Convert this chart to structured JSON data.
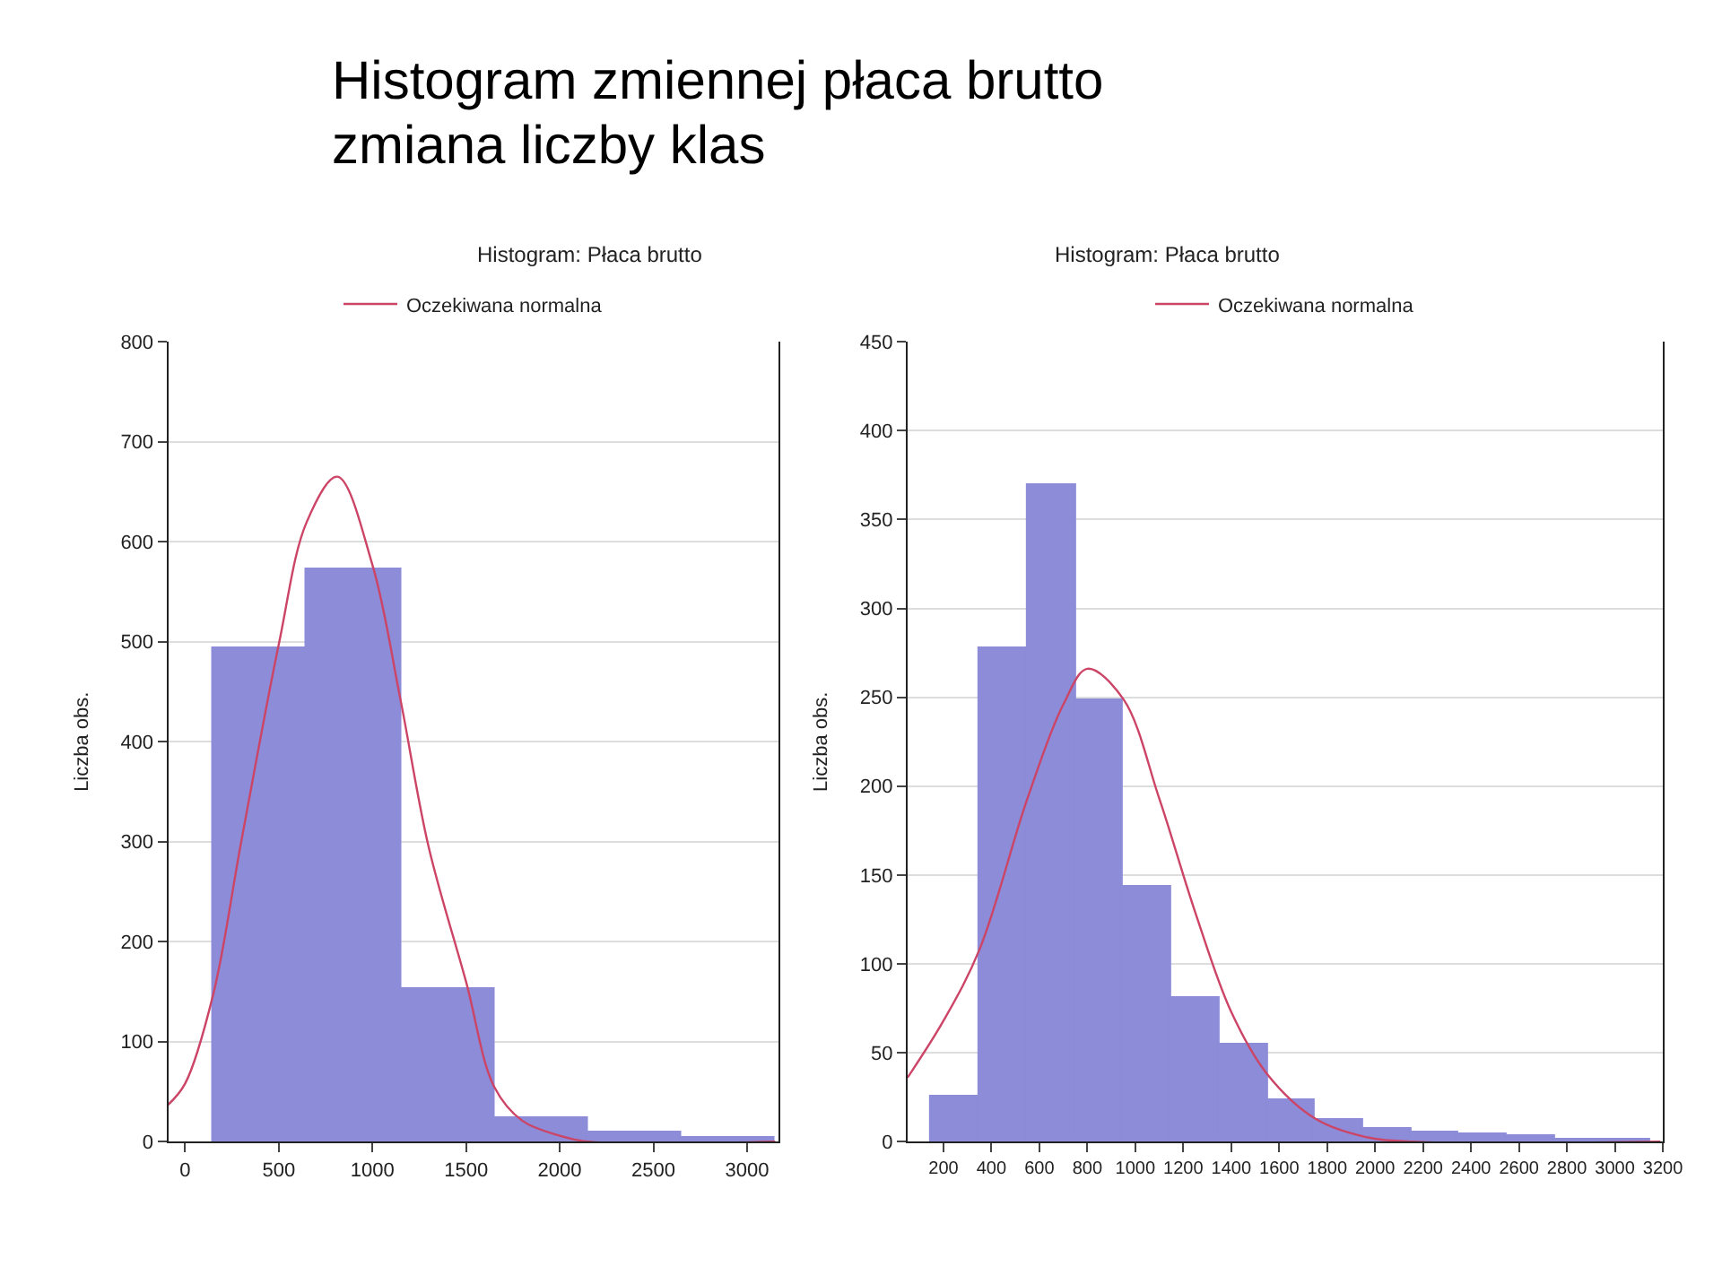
{
  "chart_data": [
    {
      "type": "histogram",
      "title": "Histogram: Płaca brutto",
      "ylabel": "Liczba obs.",
      "annotations": [
        "Histogram zmiennej płaca brutto",
        "zmiana liczby klas"
      ],
      "series": [
        {
          "color": "#8c8cd8",
          "bins": [
            150,
            650,
            1150,
            1650,
            2150,
            2650,
            3150
          ],
          "values": [
            493,
            572,
            152,
            24,
            10,
            3
          ]
        },
        {
          "type": "line",
          "name": "Oczekiwana normalna",
          "color": "#cc4466",
          "x": [
            -90,
            0,
            150,
            300,
            500,
            650,
            813,
            1000,
            1150,
            1300,
            1500,
            1650,
            1800,
            2000,
            2150,
            3150
          ],
          "values": [
            37,
            58,
            147,
            300,
            497,
            620,
            665,
            577,
            442,
            295,
            160,
            55,
            21,
            6,
            0,
            0
          ]
        }
      ],
      "xlim": [
        -90,
        3170
      ],
      "xticks": [
        0,
        500,
        1000,
        1500,
        2000,
        2500,
        3000
      ],
      "ylim": [
        0,
        800
      ],
      "yticks": [
        0,
        100,
        200,
        300,
        400,
        500,
        600,
        700,
        800
      ],
      "grid": "y",
      "legend": "top"
    },
    {
      "type": "histogram",
      "title": "Histogram: Płaca brutto",
      "ylabel": "Liczba obs.",
      "series": [
        {
          "color": "#8c8cd8",
          "bins": [
            150,
            350,
            550,
            750,
            950,
            1150,
            1350,
            1550,
            1750,
            1950,
            2150,
            2350,
            2550,
            2750,
            2950,
            3150
          ],
          "values": [
            25,
            278,
            369,
            248,
            143,
            81,
            55,
            23,
            12,
            7,
            5,
            4,
            3,
            1,
            1
          ]
        },
        {
          "type": "line",
          "name": "Oczekiwana normalna",
          "color": "#cc4466",
          "x": [
            50,
            200,
            350,
            550,
            700,
            800,
            950,
            1100,
            1250,
            1400,
            1550,
            1750,
            1950,
            2150,
            3190
          ],
          "values": [
            36,
            68,
            108,
            193,
            246,
            266,
            249,
            193,
            129,
            73,
            38,
            13,
            3,
            0,
            0
          ]
        }
      ],
      "xlim": [
        50,
        3200
      ],
      "xticks": [
        200,
        400,
        600,
        800,
        1000,
        1200,
        1400,
        1600,
        1800,
        2000,
        2200,
        2400,
        2600,
        2800,
        3000,
        3200
      ],
      "ylim": [
        0,
        450
      ],
      "yticks": [
        0,
        50,
        100,
        150,
        200,
        250,
        300,
        350,
        400,
        450
      ],
      "grid": "y",
      "legend": "top"
    }
  ]
}
